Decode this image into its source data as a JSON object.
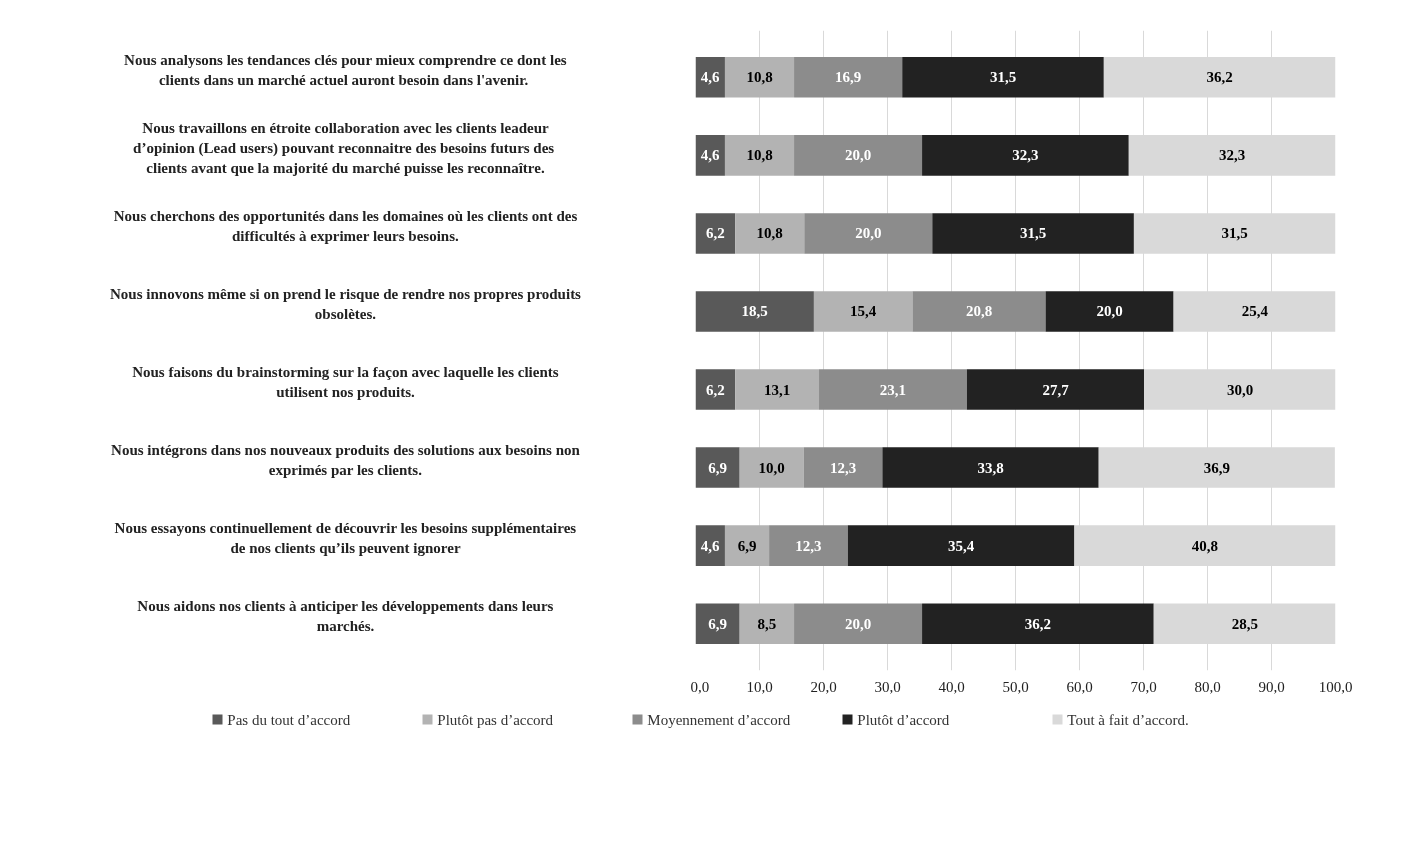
{
  "chart_data": {
    "type": "bar",
    "orientation": "horizontal",
    "stacked": true,
    "categories": [
      "Nous analysons les tendances clés pour mieux comprendre ce dont les clients dans un marché actuel auront besoin dans  l'avenir.",
      "Nous travaillons en étroite collaboration avec les clients leadeur d’opinion (Lead users) pouvant reconnaitre des besoins  futurs des clients avant que la majorité du marché puisse les reconnaître.",
      "Nous cherchons des opportunités dans les domaines où les clients ont des difficultés à exprimer leurs besoins.",
      "Nous innovons même si on prend le risque de rendre nos propres produits obsolètes.",
      "Nous faisons du brainstorming sur la façon avec laquelle les clients utilisent nos produits.",
      "Nous intégrons dans nos nouveaux produits des solutions aux besoins non exprimés par les clients.",
      "Nous essayons continuellement de découvrir les besoins supplémentaires de nos clients qu’ils peuvent ignorer",
      "Nous aidons nos clients à anticiper les développements dans leurs marchés."
    ],
    "series": [
      {
        "name": "Pas du tout d’accord",
        "color": "#595959",
        "values": [
          4.6,
          4.6,
          6.2,
          18.5,
          6.2,
          6.9,
          4.6,
          6.9
        ],
        "value_labels": [
          "4,6",
          "4,6",
          "6,2",
          "18,5",
          "6,2",
          "6,9",
          "4,6",
          "6,9"
        ]
      },
      {
        "name": "Plutôt pas d’accord",
        "color": "#b3b3b3",
        "values": [
          10.8,
          10.8,
          10.8,
          15.4,
          13.1,
          10.0,
          6.9,
          8.5
        ],
        "value_labels": [
          "10,8",
          "10,8",
          "10,8",
          "15,4",
          "13,1",
          "10,0",
          "6,9",
          "8,5"
        ]
      },
      {
        "name": "Moyennement d’accord",
        "color": "#8c8c8c",
        "values": [
          16.9,
          20.0,
          20.0,
          20.8,
          23.1,
          12.3,
          12.3,
          20.0
        ],
        "value_labels": [
          "16,9",
          "20,0",
          "20,0",
          "20,8",
          "23,1",
          "12,3",
          "12,3",
          "20,0"
        ]
      },
      {
        "name": "Plutôt d’accord",
        "color": "#222222",
        "values": [
          31.5,
          32.3,
          31.5,
          20.0,
          27.7,
          33.8,
          35.4,
          36.2
        ],
        "value_labels": [
          "31,5",
          "32,3",
          "31,5",
          "20,0",
          "27,7",
          "33,8",
          "35,4",
          "36,2"
        ]
      },
      {
        "name": "Tout à fait d’accord.",
        "color": "#d9d9d9",
        "values": [
          36.2,
          32.3,
          31.5,
          25.4,
          30.0,
          36.9,
          40.8,
          28.5
        ],
        "value_labels": [
          "36,2",
          "32,3",
          "31,5",
          "25,4",
          "30,0",
          "36,9",
          "40,8",
          "28,5"
        ]
      }
    ],
    "xlim": [
      0,
      100
    ],
    "xticks": [
      {
        "value": 0,
        "label": "0,0"
      },
      {
        "value": 10,
        "label": "10,0"
      },
      {
        "value": 20,
        "label": "20,0"
      },
      {
        "value": 30,
        "label": "30,0"
      },
      {
        "value": 40,
        "label": "40,0"
      },
      {
        "value": 50,
        "label": "50,0"
      },
      {
        "value": 60,
        "label": "60,0"
      },
      {
        "value": 70,
        "label": "70,0"
      },
      {
        "value": 80,
        "label": "80,0"
      },
      {
        "value": 90,
        "label": "90,0"
      },
      {
        "value": 100,
        "label": "100,0"
      }
    ],
    "grid": "x",
    "legend": "bottom"
  }
}
